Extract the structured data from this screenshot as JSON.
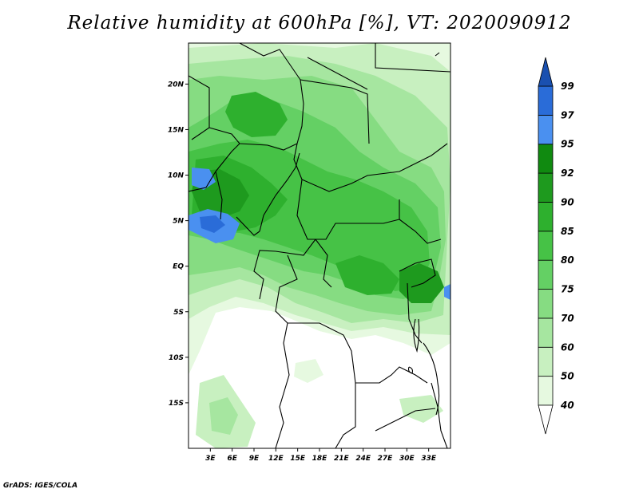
{
  "title": "Relative humidity at 600hPa [%], VT: 2020090912",
  "credit": "GrADS: IGES/COLA",
  "map": {
    "lon_range": [
      0,
      36
    ],
    "lat_range": [
      -20,
      24.5
    ],
    "lon_ticks": [
      {
        "value": 3,
        "label": "3E"
      },
      {
        "value": 6,
        "label": "6E"
      },
      {
        "value": 9,
        "label": "9E"
      },
      {
        "value": 12,
        "label": "12E"
      },
      {
        "value": 15,
        "label": "15E"
      },
      {
        "value": 18,
        "label": "18E"
      },
      {
        "value": 21,
        "label": "21E"
      },
      {
        "value": 24,
        "label": "24E"
      },
      {
        "value": 27,
        "label": "27E"
      },
      {
        "value": 30,
        "label": "30E"
      },
      {
        "value": 33,
        "label": "33E"
      }
    ],
    "lat_ticks": [
      {
        "value": 20,
        "label": "20N"
      },
      {
        "value": 15,
        "label": "15N"
      },
      {
        "value": 10,
        "label": "10N"
      },
      {
        "value": 5,
        "label": "5N"
      },
      {
        "value": 0,
        "label": "EQ"
      },
      {
        "value": -5,
        "label": "5S"
      },
      {
        "value": -10,
        "label": "10S"
      },
      {
        "value": -15,
        "label": "15S"
      }
    ]
  },
  "colorbar": {
    "levels": [
      "40",
      "50",
      "60",
      "70",
      "75",
      "80",
      "85",
      "90",
      "92",
      "95",
      "97",
      "99"
    ],
    "colors": [
      "#ffffff",
      "#e6f9e0",
      "#c8f0c0",
      "#a6e6a0",
      "#86dc82",
      "#64d064",
      "#46c246",
      "#2eb02e",
      "#1e9a1e",
      "#108a10",
      "#4a90f0",
      "#2a6cd8",
      "#1a50b0"
    ]
  }
}
